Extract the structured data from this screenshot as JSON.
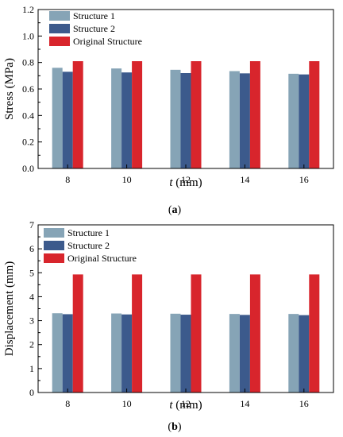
{
  "chart_data": [
    {
      "type": "bar",
      "caption_prefix": "(",
      "caption_letter": "a",
      "caption_suffix": ")",
      "categories": [
        "8",
        "10",
        "12",
        "14",
        "16"
      ],
      "series": [
        {
          "name": "Structure 1",
          "values": [
            0.76,
            0.755,
            0.745,
            0.735,
            0.715
          ],
          "color": "#86a4b6"
        },
        {
          "name": "Structure 2",
          "values": [
            0.73,
            0.725,
            0.72,
            0.718,
            0.71
          ],
          "color": "#3c5a8c"
        },
        {
          "name": "Original Structure",
          "values": [
            0.81,
            0.81,
            0.81,
            0.81,
            0.81
          ],
          "color": "#d8252c"
        }
      ],
      "xlabel_italic": "t",
      "xlabel_rest": " (mm)",
      "ylabel": "Stress (MPa)",
      "ylim": [
        0.0,
        1.2
      ],
      "yticks": [
        "0.0",
        "0.2",
        "0.4",
        "0.6",
        "0.8",
        "1.0",
        "1.2"
      ],
      "ytick_values": [
        0,
        0.2,
        0.4,
        0.6,
        0.8,
        1.0,
        1.2
      ],
      "legend_position": "top-left",
      "grid": false
    },
    {
      "type": "bar",
      "caption_prefix": "(",
      "caption_letter": "b",
      "caption_suffix": ")",
      "categories": [
        "8",
        "10",
        "12",
        "14",
        "16"
      ],
      "series": [
        {
          "name": "Structure 1",
          "values": [
            3.31,
            3.3,
            3.29,
            3.28,
            3.28
          ],
          "color": "#86a4b6"
        },
        {
          "name": "Structure 2",
          "values": [
            3.27,
            3.26,
            3.25,
            3.24,
            3.23
          ],
          "color": "#3c5a8c"
        },
        {
          "name": "Original Structure",
          "values": [
            4.93,
            4.93,
            4.93,
            4.93,
            4.93
          ],
          "color": "#d8252c"
        }
      ],
      "xlabel_italic": "t",
      "xlabel_rest": " (mm)",
      "ylabel": "Displacement (mm)",
      "ylim": [
        0,
        7
      ],
      "yticks": [
        "0",
        "1",
        "2",
        "3",
        "4",
        "5",
        "6",
        "7"
      ],
      "ytick_values": [
        0,
        1,
        2,
        3,
        4,
        5,
        6,
        7
      ],
      "legend_position": "top-left",
      "grid": false
    }
  ]
}
